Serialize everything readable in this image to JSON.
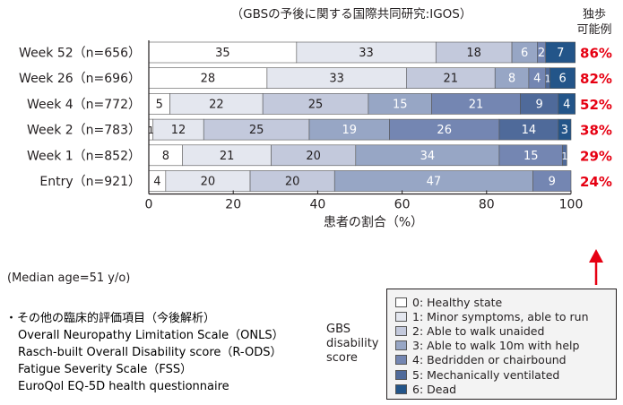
{
  "chart_data": {
    "type": "bar",
    "orientation": "horizontal",
    "stacked": true,
    "title": "（GBSの予後に関する国際共同研究:IGOS）",
    "xlabel": "患者の割合（%）",
    "xlim": [
      0,
      100
    ],
    "xticks": [
      "0",
      "20",
      "40",
      "60",
      "80",
      "100"
    ],
    "categories": [
      "Week 52（n=656）",
      "Week 26（n=696）",
      "Week 4（n=772）",
      "Week 2（n=783）",
      "Week 1（n=852）",
      "Entry（n=921）"
    ],
    "series": [
      {
        "name": "0: Healthy state",
        "color": "#ffffff",
        "values": [
          35,
          28,
          5,
          1,
          8,
          4
        ]
      },
      {
        "name": "1: Minor symptoms, able to run",
        "color": "#e4e7ef",
        "values": [
          33,
          33,
          22,
          12,
          21,
          20
        ]
      },
      {
        "name": "2: Able to walk unaided",
        "color": "#c3c9dc",
        "values": [
          18,
          21,
          25,
          25,
          20,
          20
        ]
      },
      {
        "name": "3: Able to walk 10m with help",
        "color": "#97a6c5",
        "values": [
          6,
          8,
          15,
          19,
          34,
          47
        ]
      },
      {
        "name": "4: Bedridden or chairbound",
        "color": "#7486b2",
        "values": [
          2,
          4,
          21,
          26,
          15,
          9
        ]
      },
      {
        "name": "5: Mechanically ventilated",
        "color": "#4f6a9a",
        "values": [
          0,
          1,
          9,
          14,
          1,
          0
        ]
      },
      {
        "name": "6: Dead",
        "color": "#235589",
        "values": [
          7,
          6,
          4,
          3,
          0,
          0
        ]
      }
    ],
    "segment_labels": [
      [
        "35",
        "33",
        "18",
        "6",
        "2",
        "",
        "7"
      ],
      [
        "28",
        "33",
        "21",
        "8",
        "4",
        "1",
        "6"
      ],
      [
        "5",
        "22",
        "25",
        "15",
        "21",
        "9",
        "4"
      ],
      [
        "1",
        "12",
        "25",
        "19",
        "26",
        "14",
        "3"
      ],
      [
        "8",
        "21",
        "20",
        "34",
        "15",
        "1",
        ""
      ],
      [
        "4",
        "20",
        "20",
        "47",
        "9",
        "",
        ""
      ]
    ],
    "side_header": "独歩\n可能例",
    "side_values": [
      "86%",
      "82%",
      "52%",
      "38%",
      "29%",
      "24%"
    ],
    "legend_title": "GBS\ndisability\nscore",
    "legend_placement": "bottom-right",
    "accent_color": "#e60012"
  },
  "median_age": "(Median age=51 y/o)",
  "notes": {
    "heading": "・その他の臨床的評価項目（今後解析）",
    "items": [
      "Overall Neuropathy Limitation Scale（ONLS）",
      "Rasch-built Overall Disability score（R-ODS）",
      "Fatigue Severity Scale（FSS）",
      "EuroQol EQ-5D health questionnaire"
    ]
  }
}
